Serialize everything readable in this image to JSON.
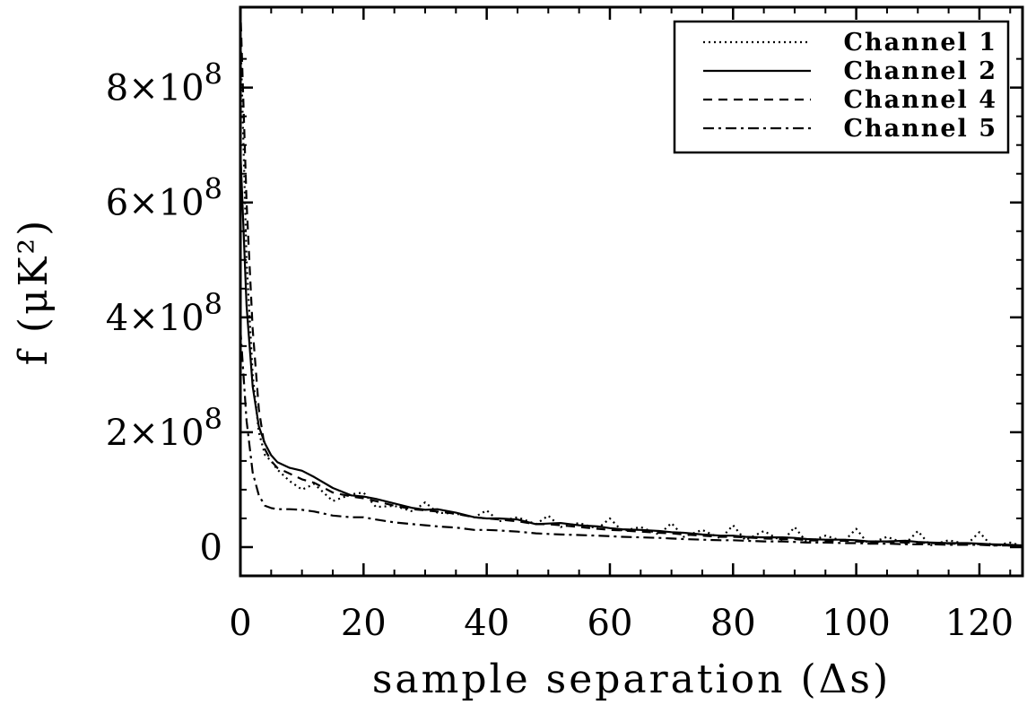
{
  "chart_data": {
    "type": "line",
    "title": "",
    "xlabel": "sample separation (Δs)",
    "ylabel": "f (μK²)",
    "xlim": [
      0,
      127
    ],
    "ylim": [
      -50000000,
      940000000
    ],
    "grid": false,
    "legend_position": "top-right",
    "x_ticks": [
      {
        "value": 0,
        "label": "0"
      },
      {
        "value": 20,
        "label": "20"
      },
      {
        "value": 40,
        "label": "40"
      },
      {
        "value": 60,
        "label": "60"
      },
      {
        "value": 80,
        "label": "80"
      },
      {
        "value": 100,
        "label": "100"
      },
      {
        "value": 120,
        "label": "120"
      }
    ],
    "y_ticks": [
      {
        "value": 0,
        "mantissa": "0",
        "exp": ""
      },
      {
        "value": 200000000,
        "mantissa": "2×10",
        "exp": "8"
      },
      {
        "value": 400000000,
        "mantissa": "4×10",
        "exp": "8"
      },
      {
        "value": 600000000,
        "mantissa": "6×10",
        "exp": "8"
      },
      {
        "value": 800000000,
        "mantissa": "8×10",
        "exp": "8"
      }
    ],
    "x": [
      0,
      1,
      2,
      3,
      4,
      5,
      6,
      8,
      10,
      12,
      15,
      18,
      20,
      22,
      25,
      28,
      30,
      32,
      35,
      38,
      40,
      42,
      45,
      48,
      50,
      52,
      55,
      58,
      60,
      62,
      65,
      68,
      70,
      72,
      75,
      78,
      80,
      82,
      85,
      88,
      90,
      92,
      95,
      98,
      100,
      102,
      105,
      108,
      110,
      112,
      115,
      118,
      120,
      122,
      125,
      127
    ],
    "series": [
      {
        "name": "Channel 1",
        "dash": "2,4",
        "values": [
          900000000,
          500000000,
          300000000,
          200000000,
          160000000,
          150000000,
          135000000,
          115000000,
          100000000,
          110000000,
          80000000,
          92000000,
          95000000,
          70000000,
          72000000,
          62000000,
          78000000,
          60000000,
          58000000,
          52000000,
          64000000,
          45000000,
          52000000,
          40000000,
          55000000,
          35000000,
          42000000,
          32000000,
          50000000,
          28000000,
          35000000,
          22000000,
          42000000,
          18000000,
          30000000,
          15000000,
          38000000,
          12000000,
          28000000,
          10000000,
          35000000,
          8000000,
          20000000,
          10000000,
          32000000,
          5000000,
          18000000,
          6000000,
          28000000,
          3000000,
          12000000,
          5000000,
          26000000,
          2000000,
          8000000,
          2000000
        ]
      },
      {
        "name": "Channel 2",
        "dash": "",
        "values": [
          690000000,
          420000000,
          280000000,
          210000000,
          180000000,
          160000000,
          148000000,
          138000000,
          133000000,
          122000000,
          103000000,
          90000000,
          88000000,
          84000000,
          76000000,
          68000000,
          65000000,
          66000000,
          60000000,
          52000000,
          50000000,
          50000000,
          48000000,
          40000000,
          41000000,
          42000000,
          38000000,
          36000000,
          33000000,
          31000000,
          30000000,
          28000000,
          26000000,
          25000000,
          22000000,
          20000000,
          20000000,
          18000000,
          17000000,
          17000000,
          16000000,
          14000000,
          13000000,
          13000000,
          12000000,
          10000000,
          10000000,
          11000000,
          9000000,
          8000000,
          7000000,
          7000000,
          6000000,
          5000000,
          4000000,
          3000000
        ]
      },
      {
        "name": "Channel 4",
        "dash": "10,7",
        "values": [
          940000000,
          600000000,
          380000000,
          240000000,
          170000000,
          150000000,
          138000000,
          128000000,
          118000000,
          112000000,
          95000000,
          88000000,
          85000000,
          80000000,
          72000000,
          66000000,
          64000000,
          62000000,
          58000000,
          52000000,
          50000000,
          48000000,
          45000000,
          40000000,
          40000000,
          38000000,
          35000000,
          32000000,
          30000000,
          29000000,
          27000000,
          25000000,
          24000000,
          22000000,
          20000000,
          18000000,
          18000000,
          17000000,
          15000000,
          14000000,
          14000000,
          12000000,
          11000000,
          11000000,
          10000000,
          9000000,
          9000000,
          8000000,
          8000000,
          7000000,
          6000000,
          6000000,
          5000000,
          4000000,
          3000000,
          3000000
        ]
      },
      {
        "name": "Channel 5",
        "dash": "12,5,3,5",
        "values": [
          380000000,
          220000000,
          130000000,
          90000000,
          72000000,
          68000000,
          66000000,
          66000000,
          65000000,
          62000000,
          55000000,
          52000000,
          52000000,
          48000000,
          43000000,
          40000000,
          38000000,
          36000000,
          34000000,
          30000000,
          30000000,
          29000000,
          27000000,
          24000000,
          23000000,
          22000000,
          21000000,
          20000000,
          19000000,
          18000000,
          17000000,
          16000000,
          15000000,
          14000000,
          13000000,
          12000000,
          12000000,
          11000000,
          10000000,
          10000000,
          9000000,
          8000000,
          8000000,
          7000000,
          7000000,
          6000000,
          6000000,
          5000000,
          5000000,
          5000000,
          4000000,
          4000000,
          4000000,
          3000000,
          3000000,
          2000000
        ]
      }
    ]
  }
}
